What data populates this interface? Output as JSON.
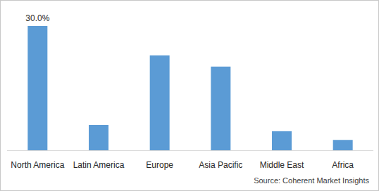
{
  "chart_data": {
    "type": "bar",
    "categories": [
      "North America",
      "Latin America",
      "Europe",
      "Asia Pacific",
      "Middle East",
      "Africa"
    ],
    "values": [
      30,
      6.1,
      22.9,
      20.2,
      4.6,
      2.5
    ],
    "value_labels": [
      "30.0%",
      null,
      null,
      null,
      null,
      null
    ],
    "data_labels": true,
    "color": "#5b9bd5",
    "ylim": [
      0,
      30
    ],
    "grid": false,
    "tick_labels": "x",
    "source": "Source: Coherent Market Insights"
  }
}
